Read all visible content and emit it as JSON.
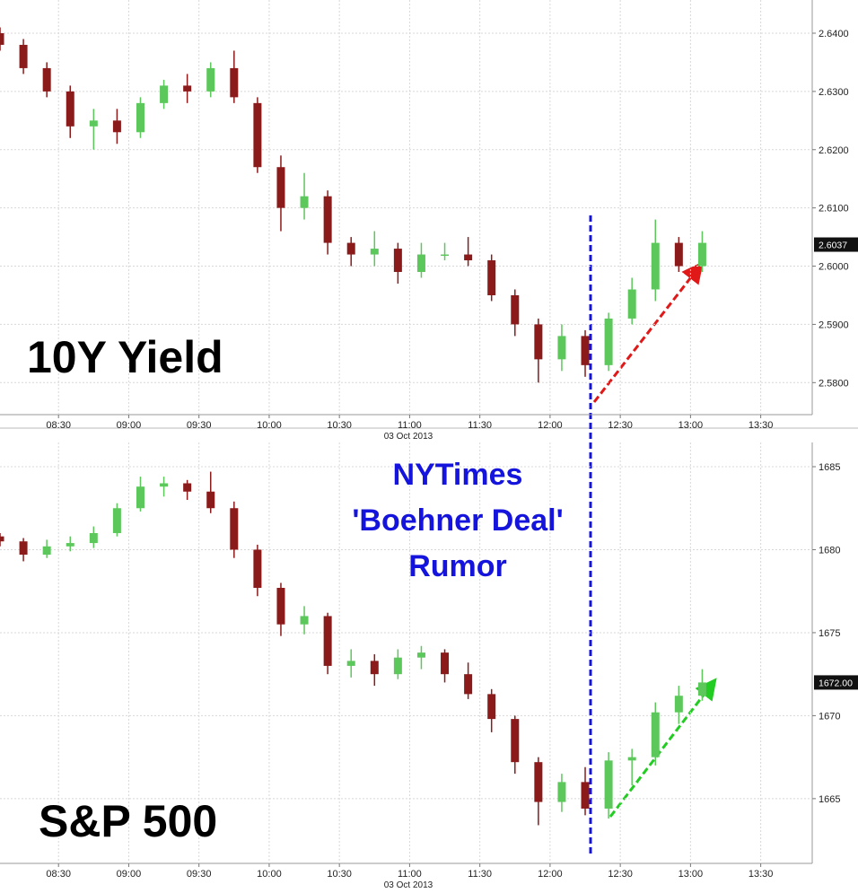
{
  "chart_data": [
    {
      "type": "candlestick",
      "title": "10Y Yield",
      "xlabel": "03 Oct 2013",
      "x": [
        "08:05",
        "08:15",
        "08:25",
        "08:35",
        "08:45",
        "08:55",
        "09:05",
        "09:15",
        "09:25",
        "09:35",
        "09:45",
        "09:55",
        "10:05",
        "10:15",
        "10:25",
        "10:35",
        "10:45",
        "10:55",
        "11:05",
        "11:15",
        "11:25",
        "11:35",
        "11:45",
        "11:55",
        "12:05",
        "12:15",
        "12:25",
        "12:35",
        "12:45",
        "12:55",
        "13:05"
      ],
      "open": [
        2.64,
        2.638,
        2.634,
        2.63,
        2.624,
        2.625,
        2.623,
        2.628,
        2.631,
        2.63,
        2.634,
        2.628,
        2.617,
        2.61,
        2.612,
        2.604,
        2.602,
        2.603,
        2.599,
        2.602,
        2.602,
        2.601,
        2.595,
        2.59,
        2.584,
        2.588,
        2.583,
        2.591,
        2.596,
        2.604,
        2.6
      ],
      "high": [
        2.641,
        2.639,
        2.635,
        2.631,
        2.627,
        2.627,
        2.629,
        2.632,
        2.633,
        2.635,
        2.637,
        2.629,
        2.619,
        2.616,
        2.613,
        2.605,
        2.606,
        2.604,
        2.604,
        2.604,
        2.605,
        2.602,
        2.596,
        2.591,
        2.59,
        2.589,
        2.592,
        2.598,
        2.608,
        2.605,
        2.606
      ],
      "low": [
        2.637,
        2.633,
        2.629,
        2.622,
        2.62,
        2.621,
        2.622,
        2.627,
        2.628,
        2.629,
        2.628,
        2.616,
        2.606,
        2.608,
        2.602,
        2.6,
        2.6,
        2.597,
        2.598,
        2.601,
        2.6,
        2.594,
        2.588,
        2.58,
        2.582,
        2.581,
        2.582,
        2.59,
        2.594,
        2.599,
        2.599
      ],
      "close": [
        2.638,
        2.634,
        2.63,
        2.624,
        2.625,
        2.623,
        2.628,
        2.631,
        2.63,
        2.634,
        2.629,
        2.617,
        2.61,
        2.612,
        2.604,
        2.602,
        2.603,
        2.599,
        2.602,
        2.602,
        2.601,
        2.595,
        2.59,
        2.584,
        2.588,
        2.583,
        2.591,
        2.596,
        2.604,
        2.6,
        2.604
      ],
      "up_color": "#5cc85c",
      "down_color": "#8b1a1a",
      "last_price": {
        "value": 2.6037,
        "label": "2.6037"
      },
      "xlim": [
        "08:05",
        "13:52"
      ],
      "xticks": [
        "08:30",
        "09:00",
        "09:30",
        "10:00",
        "10:30",
        "11:00",
        "11:30",
        "12:00",
        "12:30",
        "13:00",
        "13:30"
      ],
      "ylim": [
        2.5745,
        2.6457
      ],
      "yticks": [
        {
          "value": 2.58,
          "label": "2.5800"
        },
        {
          "value": 2.59,
          "label": "2.5900"
        },
        {
          "value": 2.6,
          "label": "2.6000"
        },
        {
          "value": 2.61,
          "label": "2.6100"
        },
        {
          "value": 2.62,
          "label": "2.6200"
        },
        {
          "value": 2.63,
          "label": "2.6300"
        },
        {
          "value": 2.64,
          "label": "2.6400"
        }
      ],
      "grid": true
    },
    {
      "type": "candlestick",
      "title": "S&P 500",
      "xlabel": "03 Oct 2013",
      "x": [
        "08:05",
        "08:15",
        "08:25",
        "08:35",
        "08:45",
        "08:55",
        "09:05",
        "09:15",
        "09:25",
        "09:35",
        "09:45",
        "09:55",
        "10:05",
        "10:15",
        "10:25",
        "10:35",
        "10:45",
        "10:55",
        "11:05",
        "11:15",
        "11:25",
        "11:35",
        "11:45",
        "11:55",
        "12:05",
        "12:15",
        "12:25",
        "12:35",
        "12:45",
        "12:55",
        "13:05"
      ],
      "open": [
        1680.8,
        1680.5,
        1679.7,
        1680.2,
        1680.4,
        1681.0,
        1682.5,
        1683.8,
        1684.0,
        1683.5,
        1682.5,
        1680.0,
        1677.7,
        1675.5,
        1676.0,
        1673.0,
        1673.3,
        1672.5,
        1673.5,
        1673.8,
        1672.5,
        1671.3,
        1669.8,
        1667.2,
        1664.8,
        1666.0,
        1664.4,
        1667.3,
        1667.5,
        1670.2,
        1671.2
      ],
      "high": [
        1681.0,
        1680.7,
        1680.6,
        1680.8,
        1681.4,
        1682.8,
        1684.4,
        1684.4,
        1684.2,
        1684.7,
        1682.9,
        1680.3,
        1678.0,
        1676.6,
        1676.2,
        1674.0,
        1673.7,
        1674.0,
        1674.2,
        1674.0,
        1673.2,
        1671.6,
        1670.0,
        1667.5,
        1666.5,
        1666.9,
        1667.8,
        1668.0,
        1670.8,
        1671.8,
        1672.8
      ],
      "low": [
        1680.2,
        1679.3,
        1679.5,
        1679.9,
        1680.1,
        1680.8,
        1682.3,
        1683.2,
        1683.0,
        1682.2,
        1679.5,
        1677.2,
        1674.8,
        1674.9,
        1672.5,
        1672.3,
        1671.8,
        1672.2,
        1672.8,
        1672.0,
        1671.0,
        1669.0,
        1666.5,
        1663.4,
        1664.2,
        1664.0,
        1663.8,
        1665.8,
        1667.0,
        1669.5,
        1670.9
      ],
      "close": [
        1680.5,
        1679.7,
        1680.2,
        1680.4,
        1681.0,
        1682.5,
        1683.8,
        1684.0,
        1683.5,
        1682.5,
        1680.0,
        1677.7,
        1675.5,
        1676.0,
        1673.0,
        1673.3,
        1672.5,
        1673.5,
        1673.8,
        1672.5,
        1671.3,
        1669.8,
        1667.2,
        1664.8,
        1666.0,
        1664.4,
        1667.3,
        1667.5,
        1670.2,
        1671.2,
        1672.0
      ],
      "up_color": "#5cc85c",
      "down_color": "#8b1a1a",
      "last_price": {
        "value": 1672.0,
        "label": "1672.00"
      },
      "xlim": [
        "08:05",
        "13:52"
      ],
      "xticks": [
        "08:30",
        "09:00",
        "09:30",
        "10:00",
        "10:30",
        "11:00",
        "11:30",
        "12:00",
        "12:30",
        "13:00",
        "13:30"
      ],
      "ylim": [
        1661.1,
        1686.46
      ],
      "yticks": [
        1665,
        1670,
        1675,
        1680,
        1685
      ],
      "grid": true
    }
  ],
  "annotation": {
    "lines": [
      "NYTimes",
      "'Boehner Deal'",
      "Rumor"
    ],
    "color": "#1414dc"
  }
}
